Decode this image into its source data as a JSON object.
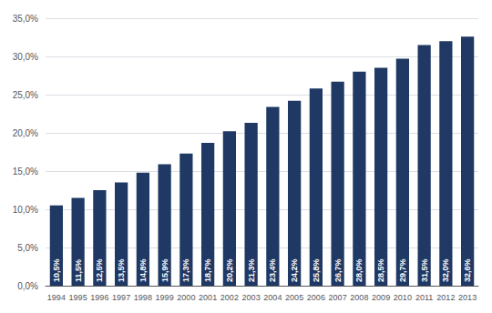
{
  "chart_data": {
    "type": "bar",
    "categories": [
      "1994",
      "1995",
      "1996",
      "1997",
      "1998",
      "1999",
      "2000",
      "2001",
      "2002",
      "2003",
      "2004",
      "2005",
      "2006",
      "2007",
      "2008",
      "2009",
      "2010",
      "2011",
      "2012",
      "2013"
    ],
    "values": [
      10.5,
      11.5,
      12.5,
      13.5,
      14.8,
      15.9,
      17.3,
      18.7,
      20.2,
      21.3,
      23.4,
      24.2,
      25.8,
      26.7,
      28.0,
      28.5,
      29.7,
      31.5,
      32.0,
      32.6
    ],
    "value_labels": [
      "10,5%",
      "11,5%",
      "12,5%",
      "13,5%",
      "14,8%",
      "15,9%",
      "17,3%",
      "18,7%",
      "20,2%",
      "21,3%",
      "23,4%",
      "24,2%",
      "25,8%",
      "26,7%",
      "28,0%",
      "28,5%",
      "29,7%",
      "31,5%",
      "32,0%",
      "32,6%"
    ],
    "data_labels": true,
    "color": "#1F3864",
    "ylim": [
      0,
      35
    ],
    "yticks": [
      {
        "value": 0.0,
        "label": "0,0%"
      },
      {
        "value": 5.0,
        "label": "5,0%"
      },
      {
        "value": 10.0,
        "label": "10,0%"
      },
      {
        "value": 15.0,
        "label": "15,0%"
      },
      {
        "value": 20.0,
        "label": "20,0%"
      },
      {
        "value": 25.0,
        "label": "25,0%"
      },
      {
        "value": 30.0,
        "label": "30,0%"
      },
      {
        "value": 35.0,
        "label": "35,0%"
      }
    ],
    "grid": true
  }
}
